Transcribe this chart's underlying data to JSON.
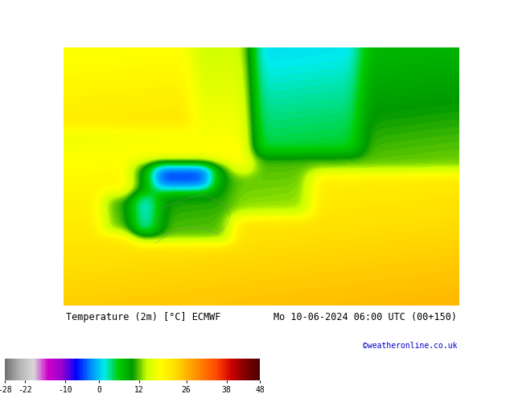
{
  "title_left": "Temperature (2m) [°C] ECMWF",
  "title_right": "Mo 10-06-2024 06:00 UTC (00+150)",
  "credit": "©weatheronline.co.uk",
  "colorbar_ticks": [
    -28,
    -22,
    -10,
    0,
    12,
    26,
    38,
    48
  ],
  "colorbar_colors": [
    "#808080",
    "#aaaaaa",
    "#cccccc",
    "#dddddd",
    "#cc00cc",
    "#9900cc",
    "#6600cc",
    "#0000ff",
    "#0044ff",
    "#0088ff",
    "#00bbff",
    "#00eeff",
    "#00cc00",
    "#00aa00",
    "#008800",
    "#ccff00",
    "#ffff00",
    "#ffdd00",
    "#ffaa00",
    "#ff7700",
    "#ff4400",
    "#cc0000",
    "#990000",
    "#660000"
  ],
  "vmin": -28,
  "vmax": 48,
  "fig_width": 6.34,
  "fig_height": 4.9,
  "background_color": "#ffff00",
  "map_bg": "#c8e6ff"
}
